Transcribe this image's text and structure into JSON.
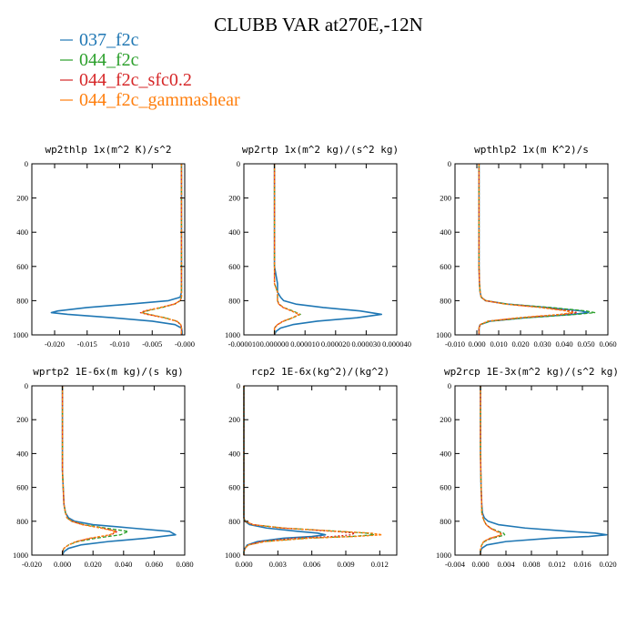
{
  "title": "CLUBB VAR at270E,-12N",
  "colors": {
    "037_f2c": "#1f77b4",
    "044_f2c": "#2ca02c",
    "044_f2c_sfc0.2": "#d62728",
    "044_f2c_gammashear": "#ff7f0e"
  },
  "legend": [
    {
      "label": "037_f2c",
      "color": "#1f77b4"
    },
    {
      "label": "044_f2c",
      "color": "#2ca02c"
    },
    {
      "label": "044_f2c_sfc0.2",
      "color": "#d62728"
    },
    {
      "label": "044_f2c_gammashear",
      "color": "#ff7f0e"
    }
  ],
  "chart_data": [
    {
      "type": "line",
      "title": "wp2thlp  1x(m^2 K)/s^2",
      "xlim": [
        -0.0235,
        0.0
      ],
      "ylim": [
        1000,
        0
      ],
      "xticks": [
        -0.02,
        -0.015,
        -0.01,
        -0.005,
        -0.0
      ],
      "xtick_labels": [
        "-0.020",
        "-0.015",
        "-0.010",
        "-0.005",
        "-0.000"
      ],
      "yticks": [
        0,
        200,
        400,
        600,
        800,
        1000
      ],
      "y": [
        0,
        100,
        200,
        300,
        400,
        500,
        600,
        700,
        750,
        780,
        800,
        820,
        840,
        860,
        870,
        880,
        900,
        920,
        940,
        960,
        980,
        1000
      ],
      "series": [
        {
          "name": "037_f2c",
          "x": [
            -0.0005,
            -0.0005,
            -0.0005,
            -0.0005,
            -0.0005,
            -0.0005,
            -0.0005,
            -0.0005,
            -0.0005,
            -0.0007,
            -0.0025,
            -0.0085,
            -0.015,
            -0.0195,
            -0.0205,
            -0.018,
            -0.011,
            -0.005,
            -0.0015,
            -0.0005,
            -0.0004,
            -0.0004
          ]
        },
        {
          "name": "044_f2c",
          "x": [
            -0.0005,
            -0.0005,
            -0.0005,
            -0.0005,
            -0.0005,
            -0.0005,
            -0.0005,
            -0.0005,
            -0.0005,
            -0.0005,
            -0.0007,
            -0.0015,
            -0.0035,
            -0.0058,
            -0.0065,
            -0.0055,
            -0.003,
            -0.0012,
            -0.0006,
            -0.0005,
            -0.0005,
            -0.0005
          ]
        },
        {
          "name": "044_f2c_sfc0.2",
          "x": [
            -0.0005,
            -0.0005,
            -0.0005,
            -0.0005,
            -0.0005,
            -0.0005,
            -0.0005,
            -0.0005,
            -0.0005,
            -0.0005,
            -0.0007,
            -0.0016,
            -0.0038,
            -0.0062,
            -0.0068,
            -0.0058,
            -0.0032,
            -0.0013,
            -0.0006,
            -0.0005,
            -0.0005,
            -0.0005
          ]
        },
        {
          "name": "044_f2c_gammashear",
          "x": [
            -0.0005,
            -0.0005,
            -0.0005,
            -0.0005,
            -0.0005,
            -0.0005,
            -0.0005,
            -0.0005,
            -0.0005,
            -0.0005,
            -0.0007,
            -0.0016,
            -0.0037,
            -0.006,
            -0.0066,
            -0.0056,
            -0.0031,
            -0.0012,
            -0.0006,
            -0.0005,
            -0.0005,
            -0.0005
          ]
        }
      ]
    },
    {
      "type": "line",
      "title": "wp2rtp  1x(m^2 kg)/(s^2 kg)",
      "xlim": [
        -1e-05,
        4e-05
      ],
      "ylim": [
        1000,
        0
      ],
      "xticks": [
        -1e-05,
        0.0,
        1e-05,
        2e-05,
        3e-05,
        4e-05
      ],
      "xtick_labels": [
        "-0.000010",
        "0.000000",
        "0.000010",
        "0.000020",
        "0.000030",
        "0.000040"
      ],
      "yticks": [
        0,
        200,
        400,
        600,
        800,
        1000
      ],
      "y": [
        0,
        100,
        200,
        300,
        400,
        500,
        600,
        700,
        750,
        780,
        800,
        820,
        840,
        860,
        880,
        900,
        920,
        940,
        960,
        980,
        1000
      ],
      "series": [
        {
          "name": "037_f2c",
          "x": [
            0.0,
            0.0,
            0.0,
            0.0,
            0.0,
            0.0,
            0.0,
            1e-06,
            1e-06,
            2e-06,
            3e-06,
            7e-06,
            1.6e-05,
            2.8e-05,
            3.5e-05,
            2.7e-05,
            1.4e-05,
            6e-06,
            2e-06,
            5e-07,
            0.0
          ]
        },
        {
          "name": "044_f2c",
          "x": [
            0.0,
            0.0,
            0.0,
            0.0,
            0.0,
            0.0,
            0.0,
            0.0,
            1e-06,
            1e-06,
            1e-06,
            1.5e-06,
            3e-06,
            6e-06,
            8.5e-06,
            6e-06,
            3e-06,
            1e-06,
            0.0,
            0.0,
            0.0
          ]
        },
        {
          "name": "044_f2c_sfc0.2",
          "x": [
            0.0,
            0.0,
            0.0,
            0.0,
            0.0,
            0.0,
            0.0,
            0.0,
            1e-06,
            1e-06,
            1e-06,
            1.4e-06,
            2.8e-06,
            5.5e-06,
            8e-06,
            5.8e-06,
            2.8e-06,
            1e-06,
            0.0,
            0.0,
            0.0
          ]
        },
        {
          "name": "044_f2c_gammashear",
          "x": [
            0.0,
            0.0,
            0.0,
            0.0,
            0.0,
            0.0,
            0.0,
            0.0,
            1e-06,
            1e-06,
            1e-06,
            1.4e-06,
            2.9e-06,
            5.7e-06,
            8.2e-06,
            5.9e-06,
            2.9e-06,
            1e-06,
            0.0,
            0.0,
            0.0
          ]
        }
      ]
    },
    {
      "type": "line",
      "title": "wpthlp2  1x(m K^2)/s",
      "xlim": [
        -0.01,
        0.06
      ],
      "ylim": [
        1000,
        0
      ],
      "xticks": [
        -0.01,
        0.0,
        0.01,
        0.02,
        0.03,
        0.04,
        0.05,
        0.06
      ],
      "xtick_labels": [
        "-0.010",
        "0.000",
        "0.010",
        "0.020",
        "0.030",
        "0.040",
        "0.050",
        "0.060"
      ],
      "yticks": [
        0,
        200,
        400,
        600,
        800,
        1000
      ],
      "y": [
        0,
        100,
        200,
        300,
        400,
        500,
        600,
        700,
        750,
        780,
        800,
        820,
        840,
        860,
        870,
        880,
        900,
        920,
        940,
        960,
        980,
        1000
      ],
      "series": [
        {
          "name": "037_f2c",
          "x": [
            0.001,
            0.001,
            0.001,
            0.001,
            0.001,
            0.001,
            0.001,
            0.0012,
            0.0015,
            0.002,
            0.004,
            0.014,
            0.032,
            0.048,
            0.051,
            0.044,
            0.022,
            0.006,
            0.0015,
            0.001,
            0.001,
            0.001
          ]
        },
        {
          "name": "044_f2c",
          "x": [
            0.001,
            0.001,
            0.001,
            0.001,
            0.001,
            0.001,
            0.001,
            0.0012,
            0.0015,
            0.002,
            0.004,
            0.014,
            0.034,
            0.05,
            0.054,
            0.046,
            0.023,
            0.006,
            0.0015,
            0.001,
            0.001,
            0.001
          ]
        },
        {
          "name": "044_f2c_sfc0.2",
          "x": [
            0.001,
            0.001,
            0.001,
            0.001,
            0.001,
            0.001,
            0.001,
            0.0012,
            0.0015,
            0.002,
            0.004,
            0.013,
            0.03,
            0.043,
            0.046,
            0.04,
            0.02,
            0.005,
            0.0015,
            0.001,
            0.001,
            0.001
          ]
        },
        {
          "name": "044_f2c_gammashear",
          "x": [
            0.001,
            0.001,
            0.001,
            0.001,
            0.001,
            0.001,
            0.001,
            0.0012,
            0.0015,
            0.002,
            0.004,
            0.013,
            0.029,
            0.041,
            0.044,
            0.038,
            0.019,
            0.005,
            0.0015,
            0.001,
            0.001,
            0.001
          ]
        }
      ]
    },
    {
      "type": "line",
      "title": "wprtp2  1E-6x(m kg)/(s kg)",
      "xlim": [
        -0.02,
        0.08
      ],
      "ylim": [
        1000,
        0
      ],
      "xticks": [
        -0.02,
        0.0,
        0.02,
        0.04,
        0.06,
        0.08
      ],
      "xtick_labels": [
        "-0.020",
        "0.000",
        "0.020",
        "0.040",
        "0.060",
        "0.080"
      ],
      "yticks": [
        0,
        200,
        400,
        600,
        800,
        1000
      ],
      "y": [
        0,
        100,
        200,
        300,
        400,
        500,
        600,
        700,
        750,
        780,
        800,
        820,
        840,
        860,
        880,
        900,
        920,
        940,
        960,
        980,
        1000
      ],
      "series": [
        {
          "name": "037_f2c",
          "x": [
            0.0,
            0.0,
            0.0,
            0.0,
            0.0,
            0.0,
            0.0005,
            0.001,
            0.002,
            0.004,
            0.008,
            0.02,
            0.045,
            0.07,
            0.074,
            0.055,
            0.03,
            0.012,
            0.004,
            0.001,
            0.0
          ]
        },
        {
          "name": "044_f2c",
          "x": [
            0.0,
            0.0,
            0.0,
            0.0,
            0.0,
            0.0,
            0.0005,
            0.001,
            0.002,
            0.003,
            0.006,
            0.014,
            0.028,
            0.043,
            0.038,
            0.022,
            0.01,
            0.004,
            0.001,
            0.0,
            0.0
          ]
        },
        {
          "name": "044_f2c_sfc0.2",
          "x": [
            0.0,
            0.0,
            0.0,
            0.0,
            0.0,
            0.0,
            0.0005,
            0.001,
            0.002,
            0.003,
            0.006,
            0.013,
            0.026,
            0.036,
            0.032,
            0.019,
            0.009,
            0.004,
            0.001,
            0.0,
            0.0
          ]
        },
        {
          "name": "044_f2c_gammashear",
          "x": [
            0.0,
            0.0,
            0.0,
            0.0,
            0.0,
            0.0,
            0.0005,
            0.001,
            0.002,
            0.003,
            0.006,
            0.013,
            0.025,
            0.035,
            0.031,
            0.018,
            0.009,
            0.004,
            0.001,
            0.0,
            0.0
          ]
        }
      ]
    },
    {
      "type": "line",
      "title": "rcp2  1E-6x(kg^2)/(kg^2)",
      "xlim": [
        0.0,
        0.0135
      ],
      "ylim": [
        1000,
        0
      ],
      "xticks": [
        0.0,
        0.003,
        0.006,
        0.009,
        0.012
      ],
      "xtick_labels": [
        "0.000",
        "0.003",
        "0.006",
        "0.009",
        "0.012"
      ],
      "yticks": [
        0,
        200,
        400,
        600,
        800,
        1000
      ],
      "y": [
        0,
        200,
        400,
        600,
        700,
        780,
        800,
        820,
        840,
        860,
        870,
        880,
        890,
        900,
        920,
        940,
        960,
        980,
        1000
      ],
      "series": [
        {
          "name": "037_f2c",
          "x": [
            0.0,
            0.0,
            0.0,
            0.0,
            0.0,
            0.0,
            0.0001,
            0.0005,
            0.002,
            0.0048,
            0.0065,
            0.0072,
            0.006,
            0.0035,
            0.0012,
            0.0003,
            0.0001,
            0.0,
            0.0
          ]
        },
        {
          "name": "044_f2c",
          "x": [
            0.0,
            0.0,
            0.0,
            0.0,
            0.0,
            0.0,
            0.0001,
            0.0008,
            0.0035,
            0.0085,
            0.0108,
            0.0115,
            0.0095,
            0.0055,
            0.0018,
            0.0004,
            0.0001,
            0.0,
            0.0
          ]
        },
        {
          "name": "044_f2c_sfc0.2",
          "x": [
            0.0,
            0.0,
            0.0,
            0.0,
            0.0,
            0.0,
            0.0001,
            0.0008,
            0.0033,
            0.008,
            0.0098,
            0.0095,
            0.0078,
            0.0045,
            0.0015,
            0.0004,
            0.0001,
            0.0,
            0.0
          ]
        },
        {
          "name": "044_f2c_gammashear",
          "x": [
            0.0,
            0.0,
            0.0,
            0.0,
            0.0,
            0.0,
            0.0001,
            0.0008,
            0.0034,
            0.0083,
            0.0112,
            0.0122,
            0.0098,
            0.0058,
            0.0019,
            0.0004,
            0.0001,
            0.0,
            0.0
          ]
        }
      ]
    },
    {
      "type": "line",
      "title": "wp2rcp  1E-3x(m^2 kg)/(s^2 kg)",
      "xlim": [
        -0.004,
        0.02
      ],
      "ylim": [
        1000,
        0
      ],
      "xticks": [
        -0.004,
        0.0,
        0.004,
        0.008,
        0.012,
        0.016,
        0.02
      ],
      "xtick_labels": [
        "-0.004",
        "0.000",
        "0.004",
        "0.008",
        "0.012",
        "0.016",
        "0.020"
      ],
      "yticks": [
        0,
        200,
        400,
        600,
        800,
        1000
      ],
      "y": [
        0,
        200,
        400,
        600,
        700,
        750,
        780,
        800,
        820,
        840,
        860,
        870,
        880,
        890,
        900,
        920,
        940,
        960,
        980,
        1000
      ],
      "series": [
        {
          "name": "037_f2c",
          "x": [
            0.0,
            0.0,
            0.0,
            0.0001,
            0.0002,
            0.0003,
            0.0006,
            0.0012,
            0.0028,
            0.007,
            0.014,
            0.018,
            0.0198,
            0.017,
            0.011,
            0.004,
            0.001,
            0.0002,
            0.0,
            0.0
          ]
        },
        {
          "name": "044_f2c",
          "x": [
            0.0,
            0.0,
            0.0,
            0.0001,
            0.0002,
            0.0002,
            0.0004,
            0.0006,
            0.0009,
            0.0016,
            0.0028,
            0.0036,
            0.0038,
            0.003,
            0.0018,
            0.0006,
            0.0002,
            0.0,
            0.0,
            0.0
          ]
        },
        {
          "name": "044_f2c_sfc0.2",
          "x": [
            0.0,
            0.0,
            0.0,
            0.0001,
            0.0002,
            0.0002,
            0.0004,
            0.0006,
            0.0009,
            0.0015,
            0.0026,
            0.0032,
            0.0033,
            0.0026,
            0.0016,
            0.0005,
            0.0002,
            0.0,
            0.0,
            0.0
          ]
        },
        {
          "name": "044_f2c_gammashear",
          "x": [
            0.0,
            0.0,
            0.0,
            0.0001,
            0.0002,
            0.0002,
            0.0004,
            0.0006,
            0.0009,
            0.0015,
            0.0025,
            0.0031,
            0.0032,
            0.0025,
            0.0015,
            0.0005,
            0.0002,
            0.0,
            0.0,
            0.0
          ]
        }
      ]
    }
  ]
}
